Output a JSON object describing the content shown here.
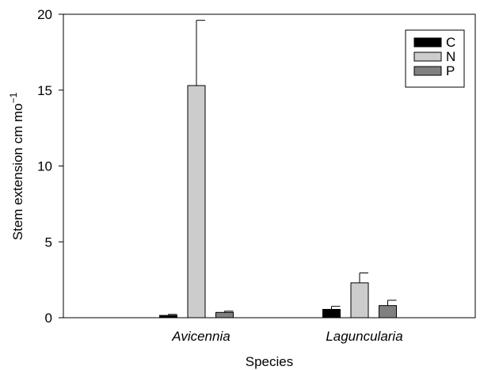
{
  "chart_data": {
    "type": "bar",
    "xlabel": "Species",
    "ylabel": "Stem extension cm mo",
    "ylabel_superscript": "−1",
    "ylim": [
      0,
      20
    ],
    "yticks": [
      "0",
      "5",
      "10",
      "15",
      "20"
    ],
    "categories": [
      "Avicennia",
      "Laguncularia"
    ],
    "series": [
      {
        "name": "C",
        "color": "#000000",
        "values": [
          0.15,
          0.55
        ],
        "errors": [
          0.07,
          0.2
        ]
      },
      {
        "name": "N",
        "color": "#cccccc",
        "values": [
          15.3,
          2.3
        ],
        "errors": [
          4.3,
          0.65
        ]
      },
      {
        "name": "P",
        "color": "#808080",
        "values": [
          0.35,
          0.8
        ],
        "errors": [
          0.08,
          0.35
        ]
      }
    ],
    "legend_position": "top-right",
    "grid": false,
    "error_bars": true
  }
}
